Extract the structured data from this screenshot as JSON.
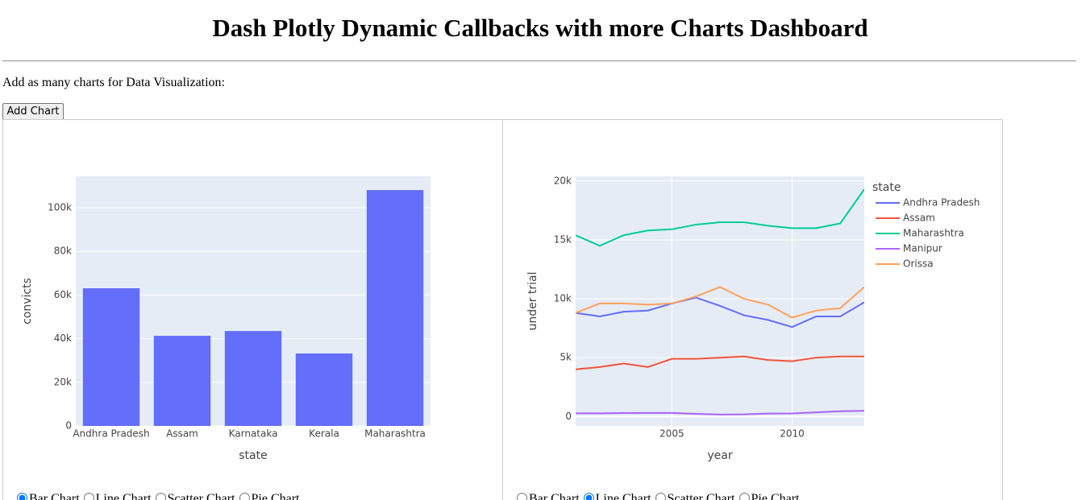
{
  "header": {
    "title": "Dash Plotly Dynamic Callbacks with more Charts Dashboard"
  },
  "intro": "Add as many charts for Data Visualization:",
  "button": "Add Chart",
  "panels": [
    {
      "options": [
        "Bar Chart",
        "Line Chart",
        "Scatter Chart",
        "Pie Chart"
      ],
      "selected": 0
    },
    {
      "options": [
        "Bar Chart",
        "Line Chart",
        "Scatter Chart",
        "Pie Chart"
      ],
      "selected": 1
    }
  ],
  "chart_data": [
    {
      "type": "bar",
      "x_label": "state",
      "y_label": "convicts",
      "categories": [
        "Andhra Pradesh",
        "Assam",
        "Karnataka",
        "Kerala",
        "Maharashtra"
      ],
      "values": [
        63100,
        41300,
        43500,
        33200,
        108100
      ],
      "color": "#636efa",
      "ylim": [
        0,
        114400
      ],
      "yticks": [
        0,
        {
          "value": 20000,
          "label": "20k"
        },
        {
          "value": 40000,
          "label": "40k"
        },
        {
          "value": 60000,
          "label": "60k"
        },
        {
          "value": 80000,
          "label": "80k"
        },
        {
          "value": 100000,
          "label": "100k"
        }
      ],
      "grid": true
    },
    {
      "type": "line",
      "x_label": "year",
      "y_label": "under trial",
      "legend_title": "state",
      "x": [
        2001,
        2002,
        2003,
        2004,
        2005,
        2006,
        2007,
        2008,
        2009,
        2010,
        2011,
        2012,
        2013
      ],
      "xlim": [
        2001,
        2013
      ],
      "xticks": [
        2005,
        2010
      ],
      "ylim": [
        -800,
        20400
      ],
      "yticks": [
        0,
        {
          "value": 5000,
          "label": "5k"
        },
        {
          "value": 10000,
          "label": "10k"
        },
        {
          "value": 15000,
          "label": "15k"
        },
        {
          "value": 20000,
          "label": "20k"
        }
      ],
      "grid": true,
      "series": [
        {
          "name": "Andhra Pradesh",
          "color": "#636efa",
          "values": [
            8800,
            8500,
            8900,
            9000,
            9600,
            10100,
            9400,
            8600,
            8200,
            7600,
            8500,
            8500,
            9700
          ]
        },
        {
          "name": "Assam",
          "color": "#EF553B",
          "values": [
            4000,
            4200,
            4500,
            4200,
            4900,
            4900,
            5000,
            5100,
            4800,
            4700,
            5000,
            5100,
            5100
          ]
        },
        {
          "name": "Maharashtra",
          "color": "#00cc96",
          "values": [
            15400,
            14500,
            15400,
            15800,
            15900,
            16300,
            16500,
            16500,
            16200,
            16000,
            16000,
            16400,
            19300
          ]
        },
        {
          "name": "Manipur",
          "color": "#ab63fa",
          "values": [
            270,
            270,
            290,
            300,
            300,
            230,
            170,
            180,
            250,
            260,
            350,
            450,
            480
          ]
        },
        {
          "name": "Orissa",
          "color": "#FFA15A",
          "values": [
            8800,
            9600,
            9600,
            9500,
            9600,
            10200,
            11000,
            10000,
            9500,
            8400,
            9000,
            9200,
            11000
          ]
        }
      ]
    }
  ]
}
